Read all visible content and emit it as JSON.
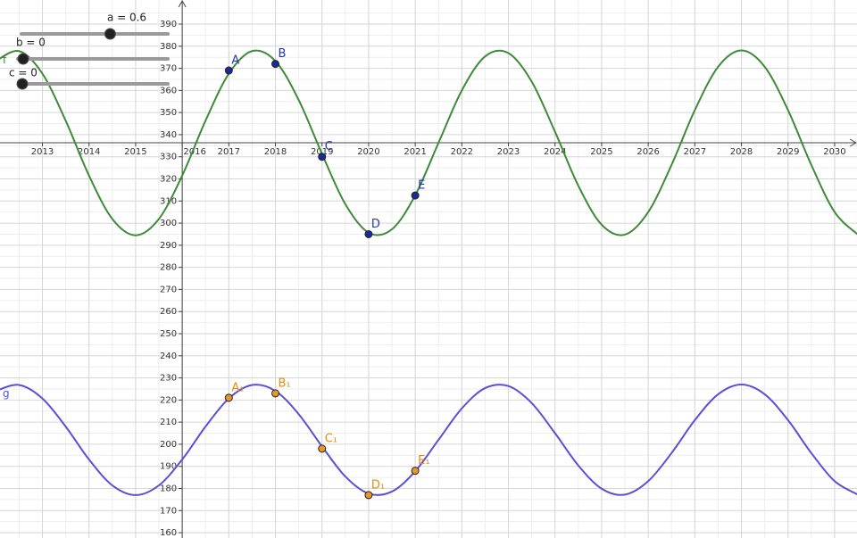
{
  "chart_data": {
    "type": "line",
    "xlim": [
      2012.09,
      2030.48
    ],
    "ylim": [
      157.6,
      400.9
    ],
    "xticks": [
      2013,
      2014,
      2015,
      2016,
      2017,
      2018,
      2019,
      2020,
      2021,
      2022,
      2023,
      2024,
      2025,
      2026,
      2027,
      2028,
      2029,
      2030
    ],
    "yticks": [
      160,
      170,
      180,
      190,
      200,
      210,
      220,
      230,
      240,
      250,
      260,
      270,
      280,
      290,
      300,
      310,
      320,
      330,
      340,
      350,
      360,
      370,
      380,
      390
    ],
    "grid": true,
    "x": [
      2012,
      2012.5,
      2013,
      2013.5,
      2014,
      2014.5,
      2015,
      2015.5,
      2016,
      2016.5,
      2017,
      2017.5,
      2018,
      2018.5,
      2019,
      2019.5,
      2020,
      2020.5,
      2021,
      2021.5,
      2022,
      2022.5,
      2023,
      2023.5,
      2024,
      2024.5,
      2025,
      2025.5,
      2026,
      2026.5,
      2027,
      2027.5,
      2028,
      2028.5,
      2029,
      2029.5,
      2030,
      2030.5
    ],
    "series": [
      {
        "name": "f",
        "color": "#3d8b37",
        "values": [
          373.3,
          377.8,
          367.6,
          346.3,
          321.5,
          301.9,
          294.5,
          301.9,
          321.5,
          346.3,
          367.6,
          377.8,
          373.3,
          355.7,
          331.3,
          308.6,
          295.7,
          297.2,
          312.6,
          336.3,
          360.0,
          375.4,
          376.9,
          364.0,
          341.3,
          316.9,
          299.3,
          294.8,
          305.0,
          326.3,
          351.1,
          370.7,
          378.1,
          370.7,
          351.1,
          326.3,
          305.0,
          294.8
        ]
      },
      {
        "name": "g",
        "color": "#5a4fd6",
        "values": [
          224.1,
          226.8,
          220.7,
          208.0,
          193.1,
          181.4,
          177.0,
          181.4,
          193.1,
          208.0,
          220.7,
          226.8,
          224.1,
          213.6,
          199.0,
          185.4,
          177.7,
          178.6,
          187.8,
          202.0,
          216.2,
          225.4,
          226.3,
          218.6,
          205.0,
          190.4,
          179.9,
          177.2,
          183.3,
          196.0,
          210.9,
          222.6,
          227.0,
          222.6,
          210.9,
          196.0,
          183.3,
          177.2
        ]
      }
    ],
    "points": [
      {
        "color": "#1a2a9c",
        "label_color": "#2438b0",
        "labels": [
          "A",
          "B",
          "C",
          "D",
          "E"
        ],
        "x": [
          2017,
          2018,
          2019,
          2020,
          2021
        ],
        "values": [
          369,
          372,
          330,
          295,
          312.5
        ]
      },
      {
        "color": "#e8962a",
        "label_color": "#e88a10",
        "labels": [
          "A₁",
          "B₁",
          "C₁",
          "D₁",
          "E₁"
        ],
        "x": [
          2017,
          2018,
          2019,
          2020,
          2021
        ],
        "values": [
          221,
          223,
          198,
          177,
          188
        ]
      }
    ],
    "sliders": [
      {
        "label": "a = 0.6",
        "value": 0.6
      },
      {
        "label": "b = 0",
        "value": 0
      },
      {
        "label": "c = 0",
        "value": 0
      }
    ]
  }
}
